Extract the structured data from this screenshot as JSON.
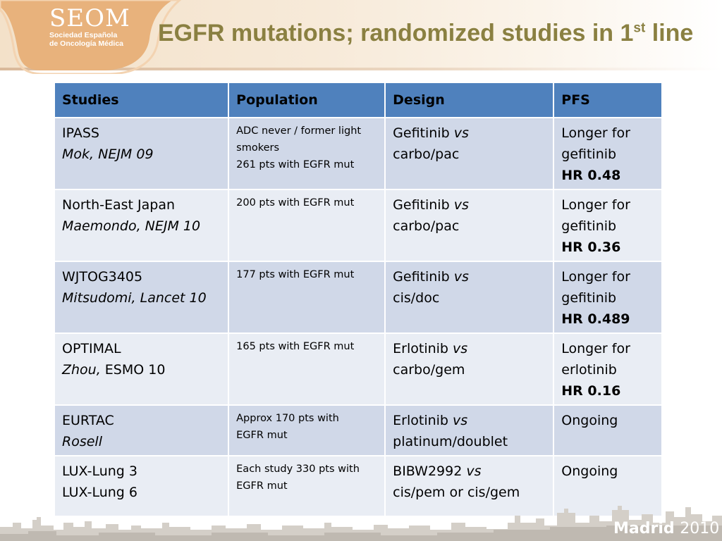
{
  "header": {
    "logo_word": "SEOM",
    "logo_line1": "Sociedad Española",
    "logo_line2": "de Oncología Médica",
    "title_main": "EGFR mutations; randomized studies in 1",
    "title_sup": "st",
    "title_end": " line"
  },
  "table": {
    "headers": [
      "Studies",
      "Population",
      "Design",
      "PFS"
    ],
    "rows": [
      {
        "study": "IPASS",
        "reference": "Mok, NEJM 09",
        "population": [
          "ADC never / former light",
          "smokers",
          "261 pts with EGFR mut"
        ],
        "design_drug": "Gefitinib",
        "design_vs": "vs",
        "design_comparator": "carbo/pac",
        "pfs": [
          "Longer for",
          "gefitinib"
        ],
        "hr": "HR 0.48"
      },
      {
        "study": "North-East Japan",
        "reference": "Maemondo, NEJM 10",
        "population": [
          "200 pts with EGFR mut"
        ],
        "design_drug": "Gefitinib",
        "design_vs": "vs",
        "design_comparator": "carbo/pac",
        "pfs": [
          "Longer for",
          "gefitinib"
        ],
        "hr": "HR 0.36"
      },
      {
        "study": "WJTOG3405",
        "reference": "Mitsudomi, Lancet 10",
        "population": [
          "177 pts with EGFR mut"
        ],
        "design_drug": "Gefitinib",
        "design_vs": "vs",
        "design_comparator": "cis/doc",
        "pfs": [
          "Longer for",
          "gefitinib"
        ],
        "hr": "HR 0.489"
      },
      {
        "study": "OPTIMAL",
        "reference_italic": "Zhou,",
        "reference_rest": " ESMO 10",
        "population": [
          "165 pts with EGFR mut"
        ],
        "design_drug": "Erlotinib",
        "design_vs": "vs",
        "design_comparator": "carbo/gem",
        "pfs": [
          "Longer for",
          "erlotinib"
        ],
        "hr": "HR 0.16"
      },
      {
        "study": "EURTAC",
        "reference": "Rosell",
        "population": [
          "Approx 170 pts with",
          "EGFR mut"
        ],
        "design_drug": "Erlotinib",
        "design_vs": "vs",
        "design_comparator": "platinum/doublet",
        "pfs": [
          "Ongoing"
        ]
      },
      {
        "study": "LUX-Lung 3",
        "study2": "LUX-Lung 6",
        "population": [
          "Each study 330 pts with",
          "EGFR mut"
        ],
        "design_drug": "BIBW2992",
        "design_vs": "vs",
        "design_comparator": "cis/pem or cis/gem",
        "pfs": [
          "Ongoing"
        ]
      }
    ]
  },
  "footer": {
    "city": "Madrid",
    "year": "2010"
  },
  "colors": {
    "title": "#8a8041",
    "header_fill": "#4f81bd",
    "row_dark": "#d0d8e8",
    "row_light": "#e9edf4",
    "logo_band": "#e8b27c",
    "skyline": "#c9c4bd"
  }
}
